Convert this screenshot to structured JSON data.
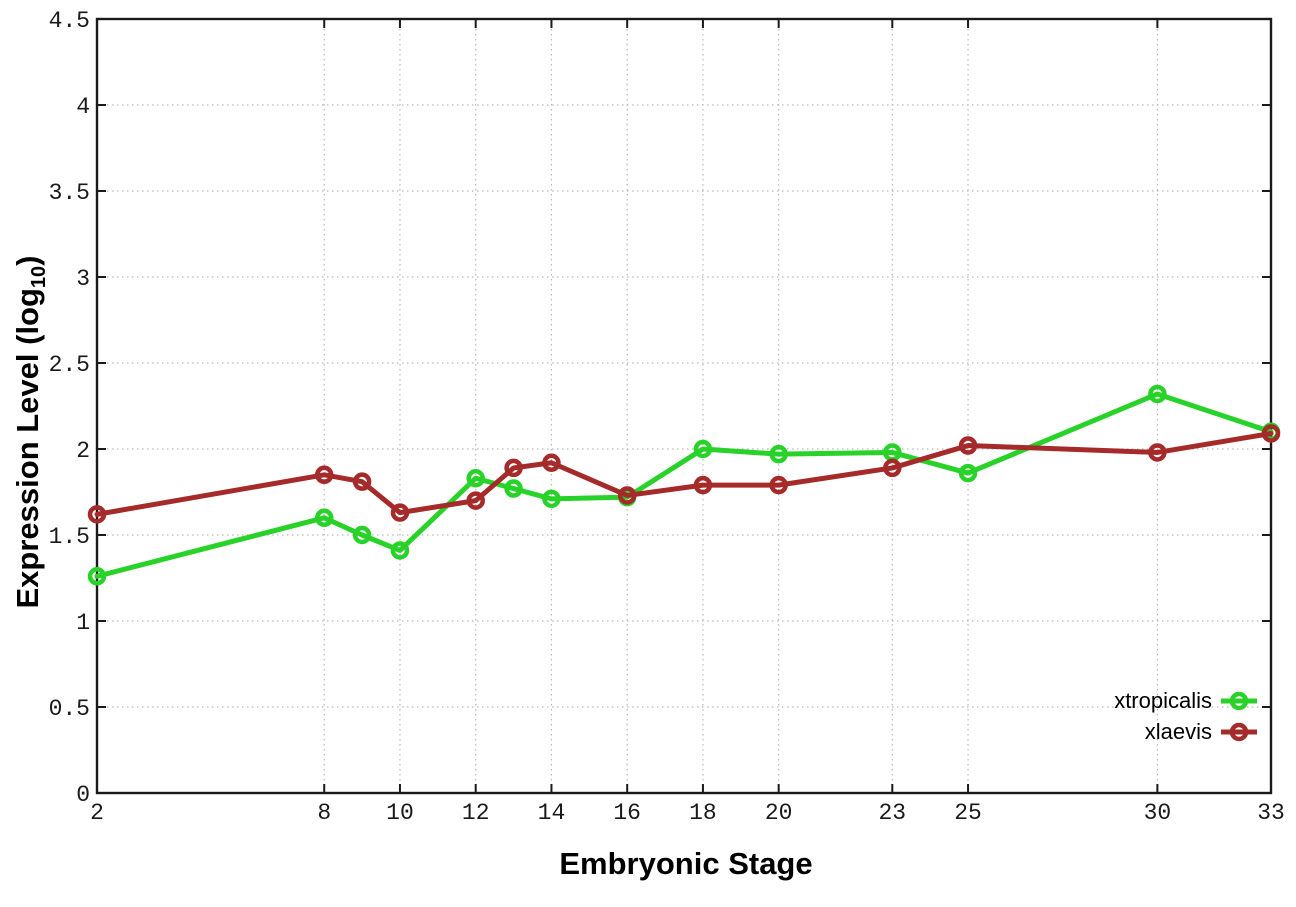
{
  "chart_data": {
    "type": "line",
    "title": "",
    "xlabel": "Embryonic Stage",
    "ylabel": "Expression Level (log10)",
    "ylabel_parts": {
      "prefix": "Expression Level (log",
      "sub": "10",
      "suffix": ")"
    },
    "x": [
      2,
      8,
      9,
      10,
      12,
      13,
      14,
      16,
      18,
      20,
      23,
      25,
      30,
      33
    ],
    "series": [
      {
        "name": "xtropicalis",
        "color": "#28d228",
        "values": [
          1.26,
          1.6,
          1.5,
          1.41,
          1.83,
          1.77,
          1.71,
          1.72,
          2.0,
          1.97,
          1.98,
          1.86,
          2.32,
          2.1
        ]
      },
      {
        "name": "xlaevis",
        "color": "#a52a2a",
        "values": [
          1.62,
          1.85,
          1.81,
          1.63,
          1.7,
          1.89,
          1.92,
          1.73,
          1.79,
          1.79,
          1.89,
          2.02,
          1.98,
          2.09
        ]
      }
    ],
    "xticks": [
      2,
      8,
      10,
      12,
      14,
      16,
      18,
      20,
      23,
      25,
      30,
      33
    ],
    "yticks": [
      0,
      0.5,
      1,
      1.5,
      2,
      2.5,
      3,
      3.5,
      4,
      4.5
    ],
    "xlim": [
      2,
      33
    ],
    "ylim": [
      0,
      4.5
    ],
    "grid": true,
    "legend_position": "bottom-right",
    "colors": {
      "axis": "#1a1a1a",
      "grid": "#b8b8b8",
      "background": "#ffffff"
    }
  }
}
